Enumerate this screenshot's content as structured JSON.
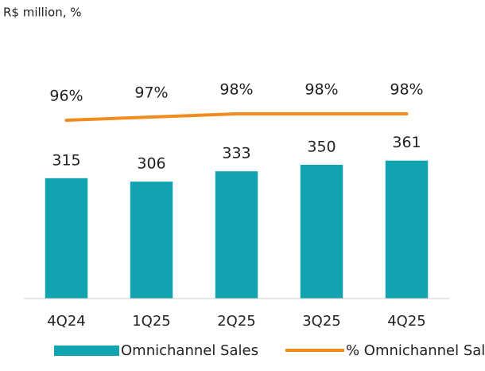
{
  "chart_data": {
    "type": "bar",
    "title": "R$ million, %",
    "categories": [
      "4Q24",
      "1Q25",
      "2Q25",
      "3Q25",
      "4Q25"
    ],
    "series": [
      {
        "name": "Omnichannel Sales",
        "type": "bar",
        "color": "#12a3b1",
        "values": [
          315,
          306,
          333,
          350,
          361
        ]
      },
      {
        "name": "% Omnichannel Sales",
        "type": "line",
        "axis": "y2",
        "color": "#f08c1e",
        "values": [
          96,
          97,
          98,
          98,
          98
        ],
        "value_labels": [
          "96%",
          "97%",
          "98%",
          "98%",
          "98%"
        ]
      }
    ],
    "ylim": [
      0,
      500
    ],
    "y2lim": [
      40,
      100
    ],
    "legend": "bottom"
  }
}
